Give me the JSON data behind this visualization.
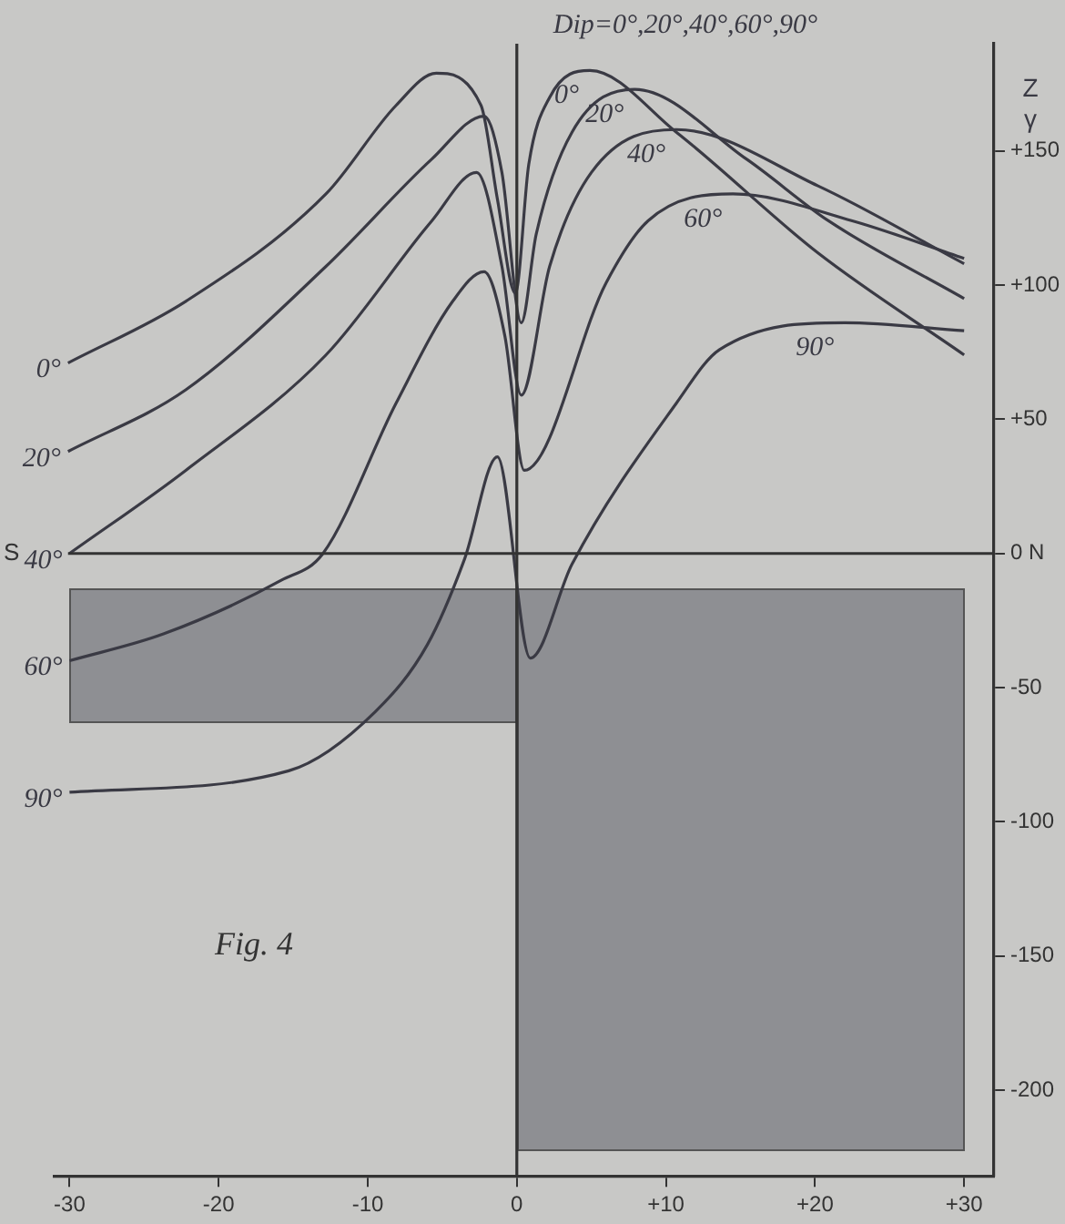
{
  "chart_data": {
    "type": "line",
    "title": "Dip=0°,20°,40°,60°,90°",
    "ylabel": "Z γ",
    "annotations": [
      "Fig. 4"
    ],
    "xlim": [
      -31,
      32
    ],
    "xticks": [
      {
        "value": -30,
        "label": "-30"
      },
      {
        "value": -20,
        "label": "-20"
      },
      {
        "value": -10,
        "label": "-10"
      },
      0,
      {
        "value": 10,
        "label": "+10"
      },
      {
        "value": 20,
        "label": "+20"
      },
      {
        "value": 30,
        "label": "+30"
      }
    ],
    "ylim": [
      -232,
      190
    ],
    "yticks": [
      {
        "value": 150,
        "label": "+150"
      },
      {
        "value": 100,
        "label": "+100"
      },
      {
        "value": 50,
        "label": "+50"
      },
      {
        "value": 0,
        "label": "0 N"
      },
      {
        "value": -50,
        "label": "-50"
      },
      {
        "value": -100,
        "label": "-100"
      },
      {
        "value": -150,
        "label": "-150"
      },
      {
        "value": -200,
        "label": "-200"
      }
    ],
    "ref_lines": [
      {
        "axis": "y",
        "value": 0,
        "label": "S"
      },
      {
        "axis": "x",
        "value": 0,
        "label": null
      }
    ],
    "grid": false,
    "legend": false,
    "marker": "none",
    "line_style": "solid",
    "series": [
      {
        "name": "0°",
        "color": "#3a3a44",
        "x": [
          -30.1,
          -22.2,
          -12.8,
          -8.1,
          -5.4,
          -2.4,
          -1.3,
          -0.1,
          0.8,
          2.2,
          4.9,
          10.7,
          20.2,
          30
        ],
        "values": [
          71,
          94,
          134,
          167,
          179,
          167,
          132,
          97,
          145,
          170,
          180,
          157,
          112,
          74
        ]
      },
      {
        "name": "20°",
        "color": "#3a3a44",
        "x": [
          -30.1,
          -22.2,
          -12.8,
          -5.7,
          -2.2,
          -1,
          0.3,
          1.3,
          3.7,
          7.9,
          15.4,
          20.9,
          30
        ],
        "values": [
          38,
          61,
          107,
          147,
          163,
          142,
          86,
          119,
          157,
          173,
          147,
          124,
          95
        ]
      },
      {
        "name": "40°",
        "color": "#3a3a44",
        "x": [
          -30,
          -22.2,
          -12.8,
          -5.7,
          -2.7,
          -1,
          0.3,
          2.2,
          5,
          10.7,
          20.2,
          30
        ],
        "values": [
          0,
          31,
          74,
          124,
          142,
          107,
          59,
          107,
          142,
          158,
          137,
          108
        ]
      },
      {
        "name": "60°",
        "color": "#3a3a44",
        "x": [
          -30,
          -23.7,
          -15.8,
          -13,
          -8.1,
          -4.3,
          -2.2,
          -0.8,
          0.5,
          6,
          8.8,
          14.5,
          22.5,
          30
        ],
        "values": [
          -40,
          -30,
          -10,
          0,
          56,
          94,
          105,
          81,
          31,
          101,
          124,
          134,
          124,
          110
        ]
      },
      {
        "name": "90°",
        "color": "#3a3a44",
        "x": [
          -30,
          -15.3,
          -9.5,
          -6,
          -3.5,
          -1.3,
          0.9,
          3.7,
          10.7,
          13.6,
          22,
          30
        ],
        "values": [
          -89,
          -81,
          -59,
          -34,
          -2,
          36,
          -39,
          -4,
          56,
          76,
          86,
          83
        ]
      }
    ]
  }
}
